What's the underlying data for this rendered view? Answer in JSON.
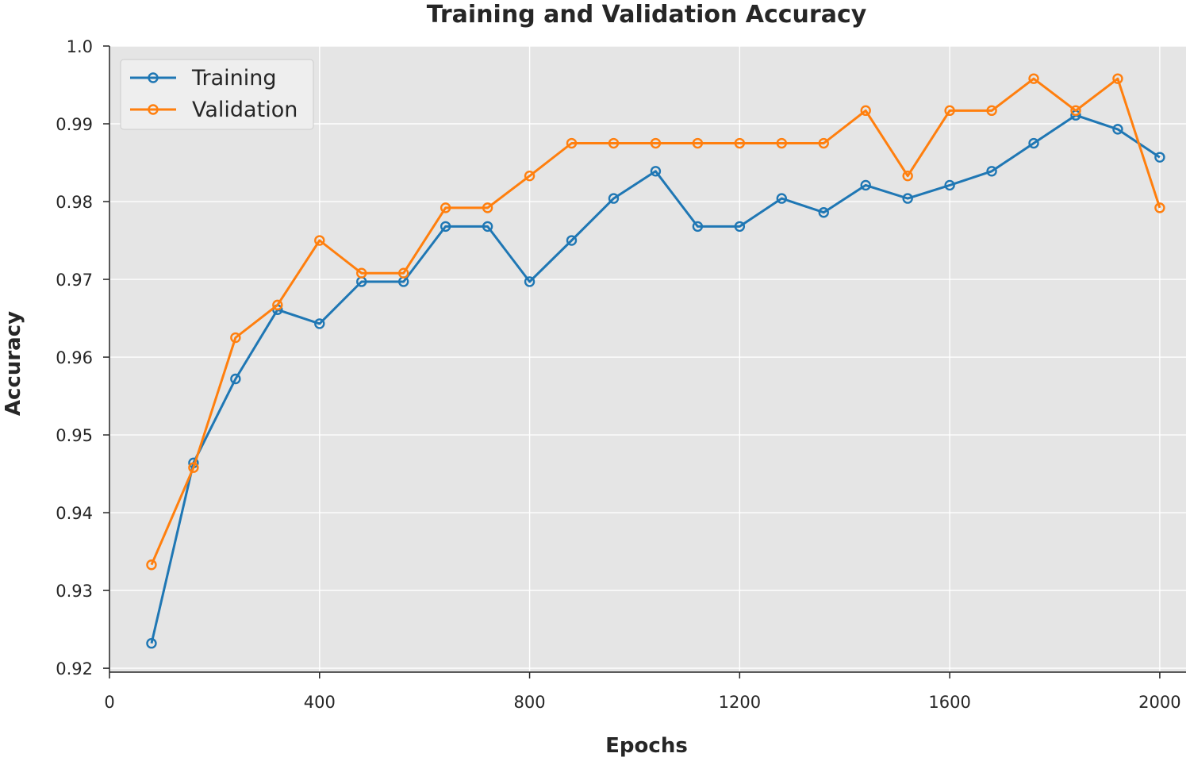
{
  "chart_data": {
    "type": "line",
    "title": "Training and Validation Accuracy",
    "xlabel": "Epochs",
    "ylabel": "Accuracy",
    "xlim": [
      0,
      2050
    ],
    "ylim": [
      0.9195,
      1.0
    ],
    "x_ticks": [
      0,
      400,
      800,
      1200,
      1600,
      2000
    ],
    "x_tick_labels": [
      "0",
      "400",
      "800",
      "1200",
      "1600",
      "2000"
    ],
    "y_ticks": [
      0.92,
      0.93,
      0.94,
      0.95,
      0.96,
      0.97,
      0.98,
      0.99,
      1.0
    ],
    "y_tick_labels": [
      "0.92",
      "0.93",
      "0.94",
      "0.95",
      "0.96",
      "0.97",
      "0.98",
      "0.99",
      "1.0"
    ],
    "grid": true,
    "legend_position": "top-left",
    "x": [
      80,
      160,
      240,
      320,
      400,
      480,
      560,
      640,
      720,
      800,
      880,
      960,
      1040,
      1120,
      1200,
      1280,
      1360,
      1440,
      1520,
      1600,
      1680,
      1760,
      1840,
      1920,
      2000
    ],
    "series": [
      {
        "name": "Training",
        "color": "#1f77b4",
        "values": [
          0.9232,
          0.9464,
          0.9572,
          0.9661,
          0.9643,
          0.9697,
          0.9697,
          0.9768,
          0.9768,
          0.9697,
          0.975,
          0.9804,
          0.9839,
          0.9768,
          0.9768,
          0.9804,
          0.9786,
          0.9821,
          0.9804,
          0.9821,
          0.9839,
          0.9875,
          0.9911,
          0.9893,
          0.9857
        ]
      },
      {
        "name": "Validation",
        "color": "#ff7f0e",
        "values": [
          0.9333,
          0.9458,
          0.9625,
          0.9667,
          0.975,
          0.9708,
          0.9708,
          0.9792,
          0.9792,
          0.9833,
          0.9875,
          0.9875,
          0.9875,
          0.9875,
          0.9875,
          0.9875,
          0.9875,
          0.9917,
          0.9833,
          0.9917,
          0.9917,
          0.9958,
          0.9917,
          0.9958,
          0.9792
        ]
      }
    ]
  }
}
